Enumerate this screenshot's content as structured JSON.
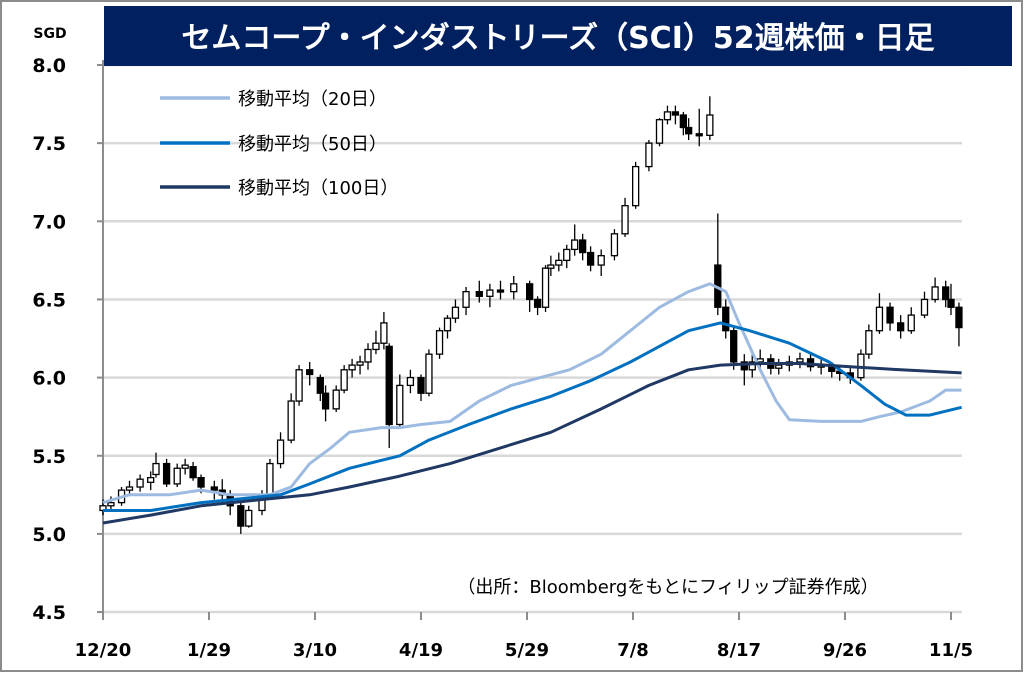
{
  "chart_data": {
    "type": "candlestick",
    "title": "セムコープ・インダストリーズ（SCI）52週株価・日足",
    "ylabel": "SGD",
    "source_note": "（出所：Bloombergをもとにフィリップ証券作成）",
    "ylim": [
      4.5,
      8.0
    ],
    "yticks": [
      "8.0",
      "7.5",
      "7.0",
      "6.5",
      "6.0",
      "5.5",
      "5.0",
      "4.5"
    ],
    "xticks": [
      "12/20",
      "1/29",
      "3/10",
      "4/19",
      "5/29",
      "7/8",
      "8/17",
      "9/26",
      "11/5"
    ],
    "grid": true,
    "legend_placement": "top-left",
    "colors": {
      "title_bg": "#002060",
      "ma20": "#9DBBE0",
      "ma50": "#0070C0",
      "ma100": "#1F3864",
      "candle": "#000000",
      "grid": "#D9D9D9"
    },
    "candles": [
      [
        "12/20",
        5.15,
        5.22,
        5.12,
        5.18
      ],
      [
        "12/23",
        5.18,
        5.24,
        5.15,
        5.2
      ],
      [
        "12/27",
        5.2,
        5.3,
        5.18,
        5.28
      ],
      [
        "12/30",
        5.28,
        5.34,
        5.25,
        5.3
      ],
      [
        "1/3",
        5.3,
        5.38,
        5.27,
        5.35
      ],
      [
        "1/7",
        5.33,
        5.4,
        5.28,
        5.36
      ],
      [
        "1/9",
        5.38,
        5.52,
        5.36,
        5.45
      ],
      [
        "1/13",
        5.45,
        5.48,
        5.3,
        5.32
      ],
      [
        "1/17",
        5.32,
        5.45,
        5.3,
        5.42
      ],
      [
        "1/20",
        5.42,
        5.48,
        5.38,
        5.44
      ],
      [
        "1/23",
        5.43,
        5.46,
        5.34,
        5.36
      ],
      [
        "1/26",
        5.36,
        5.38,
        5.26,
        5.3
      ],
      [
        "1/31",
        5.3,
        5.34,
        5.22,
        5.28
      ],
      [
        "2/3",
        5.28,
        5.35,
        5.2,
        5.25
      ],
      [
        "2/6",
        5.25,
        5.28,
        5.12,
        5.18
      ],
      [
        "2/10",
        5.18,
        5.2,
        5.0,
        5.05
      ],
      [
        "2/13",
        5.05,
        5.18,
        5.04,
        5.15
      ],
      [
        "2/18",
        5.15,
        5.28,
        5.12,
        5.25
      ],
      [
        "2/21",
        5.25,
        5.48,
        5.24,
        5.45
      ],
      [
        "2/25",
        5.45,
        5.65,
        5.42,
        5.6
      ],
      [
        "3/1",
        5.6,
        5.9,
        5.58,
        5.85
      ],
      [
        "3/4",
        5.85,
        6.08,
        5.82,
        6.05
      ],
      [
        "3/8",
        6.05,
        6.1,
        5.95,
        6.02
      ],
      [
        "3/12",
        6.0,
        6.02,
        5.85,
        5.9
      ],
      [
        "3/14",
        5.9,
        5.95,
        5.72,
        5.8
      ],
      [
        "3/18",
        5.8,
        5.95,
        5.78,
        5.92
      ],
      [
        "3/21",
        5.92,
        6.08,
        5.9,
        6.05
      ],
      [
        "3/24",
        6.05,
        6.12,
        6.0,
        6.08
      ],
      [
        "3/27",
        6.08,
        6.14,
        6.02,
        6.1
      ],
      [
        "3/30",
        6.1,
        6.22,
        6.05,
        6.18
      ],
      [
        "4/2",
        6.18,
        6.3,
        6.15,
        6.22
      ],
      [
        "4/5",
        6.22,
        6.42,
        6.18,
        6.35
      ],
      [
        "4/7",
        6.2,
        6.22,
        5.55,
        5.7
      ],
      [
        "4/11",
        5.7,
        6.02,
        5.68,
        5.95
      ],
      [
        "4/15",
        5.95,
        6.05,
        5.9,
        6.0
      ],
      [
        "4/19",
        6.0,
        6.02,
        5.85,
        5.9
      ],
      [
        "4/22",
        5.9,
        6.18,
        5.88,
        6.15
      ],
      [
        "4/26",
        6.15,
        6.32,
        6.12,
        6.3
      ],
      [
        "4/29",
        6.3,
        6.4,
        6.25,
        6.38
      ],
      [
        "5/2",
        6.38,
        6.5,
        6.35,
        6.45
      ],
      [
        "5/6",
        6.45,
        6.58,
        6.4,
        6.55
      ],
      [
        "5/11",
        6.55,
        6.62,
        6.48,
        6.52
      ],
      [
        "5/15",
        6.52,
        6.6,
        6.45,
        6.56
      ],
      [
        "5/19",
        6.56,
        6.62,
        6.5,
        6.55
      ],
      [
        "5/24",
        6.55,
        6.65,
        6.5,
        6.6
      ],
      [
        "5/30",
        6.6,
        6.62,
        6.42,
        6.5
      ],
      [
        "6/2",
        6.5,
        6.52,
        6.4,
        6.45
      ],
      [
        "6/5",
        6.45,
        6.72,
        6.42,
        6.7
      ],
      [
        "6/7",
        6.7,
        6.78,
        6.65,
        6.72
      ],
      [
        "6/10",
        6.72,
        6.8,
        6.68,
        6.75
      ],
      [
        "6/13",
        6.75,
        6.85,
        6.7,
        6.82
      ],
      [
        "6/16",
        6.82,
        6.98,
        6.78,
        6.88
      ],
      [
        "6/19",
        6.88,
        6.92,
        6.75,
        6.8
      ],
      [
        "6/22",
        6.8,
        6.84,
        6.68,
        6.72
      ],
      [
        "6/26",
        6.72,
        6.82,
        6.65,
        6.78
      ],
      [
        "7/1",
        6.78,
        6.95,
        6.75,
        6.92
      ],
      [
        "7/5",
        6.92,
        7.15,
        6.9,
        7.1
      ],
      [
        "7/9",
        7.1,
        7.38,
        7.08,
        7.35
      ],
      [
        "7/14",
        7.35,
        7.52,
        7.32,
        7.5
      ],
      [
        "7/18",
        7.5,
        7.66,
        7.48,
        7.65
      ],
      [
        "7/21",
        7.65,
        7.74,
        7.62,
        7.7
      ],
      [
        "7/24",
        7.7,
        7.74,
        7.62,
        7.68
      ],
      [
        "7/27",
        7.68,
        7.7,
        7.55,
        7.6
      ],
      [
        "7/29",
        7.6,
        7.66,
        7.52,
        7.56
      ],
      [
        "8/2",
        7.56,
        7.72,
        7.48,
        7.55
      ],
      [
        "8/6",
        7.55,
        7.8,
        7.52,
        7.68
      ],
      [
        "8/9",
        6.72,
        7.05,
        6.4,
        6.45
      ],
      [
        "8/12",
        6.45,
        6.5,
        6.25,
        6.3
      ],
      [
        "8/15",
        6.3,
        6.32,
        6.05,
        6.1
      ],
      [
        "8/19",
        6.1,
        6.15,
        5.95,
        6.05
      ],
      [
        "8/22",
        6.05,
        6.15,
        6.0,
        6.1
      ],
      [
        "8/25",
        6.1,
        6.18,
        6.05,
        6.12
      ],
      [
        "8/29",
        6.12,
        6.15,
        6.02,
        6.06
      ],
      [
        "9/1",
        6.06,
        6.12,
        6.02,
        6.08
      ],
      [
        "9/5",
        6.08,
        6.14,
        6.04,
        6.1
      ],
      [
        "9/9",
        6.1,
        6.16,
        6.06,
        6.12
      ],
      [
        "9/13",
        6.12,
        6.15,
        6.04,
        6.07
      ],
      [
        "9/17",
        6.07,
        6.12,
        6.02,
        6.08
      ],
      [
        "9/21",
        6.08,
        6.1,
        6.0,
        6.04
      ],
      [
        "9/24",
        6.04,
        6.08,
        5.98,
        6.03
      ],
      [
        "9/28",
        6.03,
        6.06,
        5.96,
        6.0
      ],
      [
        "10/2",
        6.0,
        6.18,
        5.98,
        6.15
      ],
      [
        "10/5",
        6.15,
        6.34,
        6.12,
        6.3
      ],
      [
        "10/9",
        6.3,
        6.54,
        6.28,
        6.45
      ],
      [
        "10/13",
        6.45,
        6.48,
        6.3,
        6.35
      ],
      [
        "10/17",
        6.35,
        6.4,
        6.25,
        6.3
      ],
      [
        "10/21",
        6.3,
        6.45,
        6.28,
        6.4
      ],
      [
        "10/26",
        6.4,
        6.55,
        6.38,
        6.5
      ],
      [
        "10/30",
        6.5,
        6.64,
        6.48,
        6.58
      ],
      [
        "11/3",
        6.58,
        6.62,
        6.45,
        6.5
      ],
      [
        "11/5",
        6.5,
        6.6,
        6.4,
        6.45
      ],
      [
        "11/8",
        6.45,
        6.48,
        6.2,
        6.32
      ]
    ],
    "series": [
      {
        "name": "移動平均（20日）",
        "color": "#9DBBE0",
        "points": [
          [
            "12/20",
            5.2
          ],
          [
            "12/30",
            5.25
          ],
          [
            "1/14",
            5.25
          ],
          [
            "1/26",
            5.28
          ],
          [
            "2/6",
            5.25
          ],
          [
            "2/21",
            5.25
          ],
          [
            "3/1",
            5.3
          ],
          [
            "3/8",
            5.45
          ],
          [
            "3/16",
            5.55
          ],
          [
            "3/23",
            5.65
          ],
          [
            "4/4",
            5.68
          ],
          [
            "4/11",
            5.68
          ],
          [
            "4/19",
            5.7
          ],
          [
            "4/30",
            5.72
          ],
          [
            "5/11",
            5.85
          ],
          [
            "5/23",
            5.95
          ],
          [
            "6/3",
            6.0
          ],
          [
            "6/14",
            6.05
          ],
          [
            "6/26",
            6.15
          ],
          [
            "7/7",
            6.3
          ],
          [
            "7/18",
            6.45
          ],
          [
            "7/29",
            6.55
          ],
          [
            "8/6",
            6.6
          ],
          [
            "8/12",
            6.55
          ],
          [
            "8/17",
            6.35
          ],
          [
            "8/25",
            6.05
          ],
          [
            "8/31",
            5.85
          ],
          [
            "9/5",
            5.73
          ],
          [
            "9/17",
            5.72
          ],
          [
            "10/2",
            5.72
          ],
          [
            "10/9",
            5.75
          ],
          [
            "10/17",
            5.78
          ],
          [
            "10/28",
            5.85
          ],
          [
            "11/3",
            5.92
          ],
          [
            "11/9",
            5.92
          ]
        ]
      },
      {
        "name": "移動平均（50日）",
        "color": "#0070C0",
        "points": [
          [
            "12/20",
            5.15
          ],
          [
            "1/7",
            5.15
          ],
          [
            "1/26",
            5.2
          ],
          [
            "2/13",
            5.23
          ],
          [
            "2/25",
            5.25
          ],
          [
            "3/8",
            5.32
          ],
          [
            "3/23",
            5.42
          ],
          [
            "4/11",
            5.5
          ],
          [
            "4/22",
            5.6
          ],
          [
            "5/7",
            5.7
          ],
          [
            "5/23",
            5.8
          ],
          [
            "6/7",
            5.88
          ],
          [
            "6/22",
            5.98
          ],
          [
            "7/7",
            6.1
          ],
          [
            "7/18",
            6.2
          ],
          [
            "7/29",
            6.3
          ],
          [
            "8/10",
            6.35
          ],
          [
            "8/21",
            6.3
          ],
          [
            "9/5",
            6.22
          ],
          [
            "9/20",
            6.1
          ],
          [
            "10/2",
            5.95
          ],
          [
            "10/11",
            5.83
          ],
          [
            "10/19",
            5.76
          ],
          [
            "10/28",
            5.76
          ],
          [
            "11/9",
            5.81
          ]
        ]
      },
      {
        "name": "移動平均（100日）",
        "color": "#1F3864",
        "points": [
          [
            "12/20",
            5.07
          ],
          [
            "1/7",
            5.12
          ],
          [
            "1/26",
            5.18
          ],
          [
            "2/18",
            5.22
          ],
          [
            "3/8",
            5.25
          ],
          [
            "3/23",
            5.3
          ],
          [
            "4/11",
            5.37
          ],
          [
            "4/30",
            5.45
          ],
          [
            "5/19",
            5.55
          ],
          [
            "6/7",
            5.65
          ],
          [
            "6/26",
            5.8
          ],
          [
            "7/14",
            5.95
          ],
          [
            "7/29",
            6.05
          ],
          [
            "8/10",
            6.08
          ],
          [
            "8/25",
            6.09
          ],
          [
            "9/9",
            6.09
          ],
          [
            "9/28",
            6.07
          ],
          [
            "10/17",
            6.05
          ],
          [
            "11/9",
            6.03
          ]
        ]
      }
    ]
  }
}
